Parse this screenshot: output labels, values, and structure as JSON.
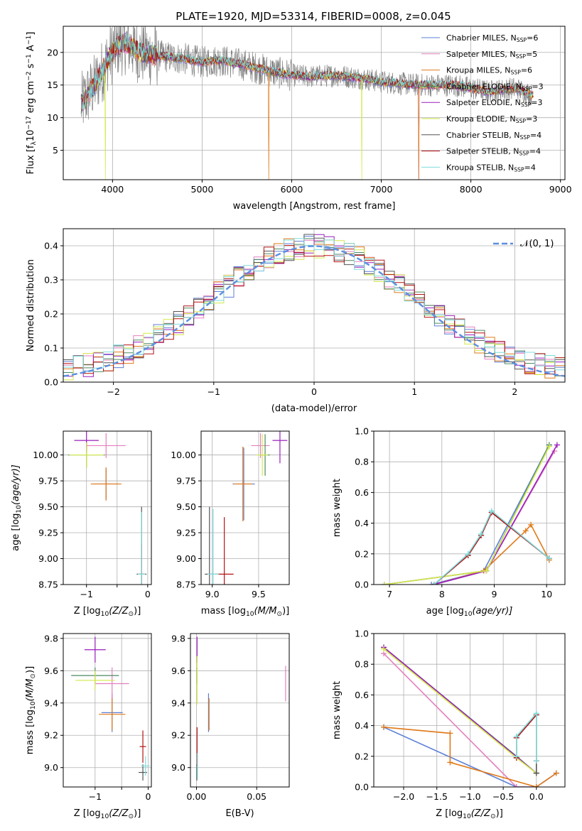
{
  "figure": {
    "title": "PLATE=1920, MJD=53314, FIBERID=0008, z=0.045"
  },
  "colors": {
    "Chabrier MILES": "#5b7fd6",
    "Salpeter MILES": "#e47fbf",
    "Kroupa MILES": "#e07a1a",
    "Chabrier ELODIE": "#4c8a63",
    "Salpeter ELODIE": "#9a1fbd",
    "Kroupa ELODIE": "#d4e84a",
    "Chabrier STELIB": "#555555",
    "Salpeter STELIB": "#b51313",
    "Kroupa STELIB": "#7fdcdc",
    "data": "#808080",
    "normal": "#5b8fe0",
    "grid": "#b0b0b0"
  },
  "legend_labels": {
    "spectrum": [
      {
        "model": "Chabrier MILES",
        "text": "Chabrier MILES, N",
        "sub": "SSP",
        "tail": "=6"
      },
      {
        "model": "Salpeter MILES",
        "text": "Salpeter MILES, N",
        "sub": "SSP",
        "tail": "=5"
      },
      {
        "model": "Kroupa MILES",
        "text": "Kroupa MILES, N",
        "sub": "SSP",
        "tail": "=6"
      },
      {
        "model": "Chabrier ELODIE",
        "text": "Chabrier ELODIE, N",
        "sub": "SSP",
        "tail": "=3"
      },
      {
        "model": "Salpeter ELODIE",
        "text": "Salpeter ELODIE, N",
        "sub": "SSP",
        "tail": "=3"
      },
      {
        "model": "Kroupa ELODIE",
        "text": "Kroupa ELODIE, N",
        "sub": "SSP",
        "tail": "=3"
      },
      {
        "model": "Chabrier STELIB",
        "text": "Chabrier STELIB, N",
        "sub": "SSP",
        "tail": "=4"
      },
      {
        "model": "Salpeter STELIB",
        "text": "Salpeter STELIB, N",
        "sub": "SSP",
        "tail": "=4"
      },
      {
        "model": "Kroupa STELIB",
        "text": "Kroupa STELIB, N",
        "sub": "SSP",
        "tail": "=4"
      }
    ],
    "residual": "𝒩(0, 1)"
  },
  "chart_data": [
    {
      "id": "spectrum",
      "type": "line",
      "xlabel": "wavelength [Angstrom, rest frame]",
      "ylabel": "Flux [f",
      "ylabel_sub": "λ",
      "ylabel_rest": "10",
      "ylabel_exp": "−17",
      "ylabel_tail": " erg cm",
      "ylabel_exp2": "−2",
      "ylabel_tail2": " s",
      "ylabel_exp3": "−1",
      "ylabel_tail3": " A",
      "ylabel_exp4": "−1",
      "ylabel_end": "]",
      "xlim": [
        3450,
        9050
      ],
      "ylim": [
        0.5,
        24
      ],
      "xticks": [
        4000,
        5000,
        6000,
        7000,
        8000,
        9000
      ],
      "yticks": [
        5,
        10,
        15,
        20
      ],
      "legend_position": "upper right",
      "data_x_range": [
        3650,
        8680
      ],
      "model_x_range": [
        3650,
        8700
      ],
      "approx_continuum": [
        [
          3650,
          12
        ],
        [
          3700,
          13
        ],
        [
          3800,
          15
        ],
        [
          3900,
          17.5
        ],
        [
          3950,
          19
        ],
        [
          4050,
          21
        ],
        [
          4150,
          21.5
        ],
        [
          4300,
          20
        ],
        [
          4500,
          19.5
        ],
        [
          4800,
          19
        ],
        [
          5000,
          18.5
        ],
        [
          5200,
          18.8
        ],
        [
          5500,
          18
        ],
        [
          5800,
          17
        ],
        [
          6000,
          16.5
        ],
        [
          6200,
          16.3
        ],
        [
          6500,
          16.5
        ],
        [
          6800,
          16
        ],
        [
          7000,
          15.5
        ],
        [
          7400,
          15
        ],
        [
          7800,
          15
        ],
        [
          8000,
          14.5
        ],
        [
          8200,
          14
        ],
        [
          8500,
          14.5
        ],
        [
          8680,
          13.5
        ]
      ]
    },
    {
      "id": "residuals",
      "type": "histogram",
      "xlabel": "(data-model)/error",
      "ylabel": "Normed distribution",
      "xlim": [
        -2.5,
        2.5
      ],
      "ylim": [
        0,
        0.45
      ],
      "xticks": [
        -2,
        -1,
        0,
        1,
        2
      ],
      "xtick_labels": [
        "−2",
        "−1",
        "0",
        "1",
        "2"
      ],
      "yticks": [
        0.0,
        0.1,
        0.2,
        0.3,
        0.4
      ],
      "ytick_labels": [
        "0.0",
        "0.1",
        "0.2",
        "0.3",
        "0.4"
      ],
      "bin_width": 0.1,
      "reference": {
        "name": "𝒩(0, 1)",
        "mean": 0,
        "sigma": 1
      },
      "legend_position": "upper right"
    },
    {
      "id": "age_vs_Z",
      "type": "errorbar",
      "xlabel": "Z [log",
      "xlabel_sub": "10",
      "xlabel_rest": "(Z/Z",
      "xlabel_sub2": "⊙",
      "xlabel_end": ")]",
      "ylabel": "age  [log",
      "ylabel_sub": "10",
      "ylabel_rest": "(age/yr)]",
      "xlim": [
        -1.38,
        0.06
      ],
      "ylim": [
        8.75,
        10.23
      ],
      "xticks": [
        -1,
        -0.5,
        0
      ],
      "xtick_labels": [
        "−1",
        "",
        "0"
      ],
      "yticks": [
        8.75,
        9.0,
        9.25,
        9.5,
        9.75,
        10.0
      ],
      "ytick_labels": [
        "8.75",
        "9.00",
        "9.25",
        "9.50",
        "9.75",
        "10.00"
      ],
      "points": [
        {
          "model": "Chabrier MILES",
          "x": -0.68,
          "y": 9.72,
          "xerr": 0.2,
          "yerr": 0.15
        },
        {
          "model": "Salpeter MILES",
          "x": -0.68,
          "y": 10.09,
          "xerr": 0.32,
          "yerr": 0.12
        },
        {
          "model": "Kroupa MILES",
          "x": -0.68,
          "y": 9.72,
          "xerr": 0.25,
          "yerr": 0.16
        },
        {
          "model": "Chabrier ELODIE",
          "x": -1.0,
          "y": 10.0,
          "xerr": 0.3,
          "yerr": 0.12
        },
        {
          "model": "Salpeter ELODIE",
          "x": -1.0,
          "y": 10.14,
          "xerr": 0.2,
          "yerr": 0.1
        },
        {
          "model": "Kroupa ELODIE",
          "x": -1.0,
          "y": 10.0,
          "xerr": 0.28,
          "yerr": 0.12
        },
        {
          "model": "Chabrier STELIB",
          "x": -0.1,
          "y": 8.85,
          "xerr": 0.08,
          "yerr": 0.65
        },
        {
          "model": "Salpeter STELIB",
          "x": -0.1,
          "y": 8.85,
          "xerr": 0.04,
          "yerr": 0.3
        },
        {
          "model": "Kroupa STELIB",
          "x": -0.1,
          "y": 8.85,
          "xerr": 0.06,
          "yerr": 0.6
        }
      ]
    },
    {
      "id": "age_vs_mass",
      "type": "errorbar",
      "xlabel": "mass [log",
      "xlabel_sub": "10",
      "xlabel_rest": "(M/M",
      "xlabel_sub2": "⊙",
      "xlabel_end": ")]",
      "ylabel": "",
      "xlim": [
        8.88,
        9.83
      ],
      "ylim": [
        8.75,
        10.23
      ],
      "xticks": [
        9.0,
        9.5
      ],
      "xtick_labels": [
        "9.0",
        "9.5"
      ],
      "yticks": [
        8.75,
        9.0,
        9.25,
        9.5,
        9.75,
        10.0
      ],
      "ytick_labels": [
        "8.75",
        "9.00",
        "9.25",
        "9.50",
        "9.75",
        "10.00"
      ],
      "points": [
        {
          "model": "Chabrier MILES",
          "x": 9.34,
          "y": 9.72,
          "xerr": 0.12,
          "yerr": 0.35
        },
        {
          "model": "Salpeter MILES",
          "x": 9.52,
          "y": 10.09,
          "xerr": 0.1,
          "yerr": 0.12
        },
        {
          "model": "Kroupa MILES",
          "x": 9.33,
          "y": 9.72,
          "xerr": 0.1,
          "yerr": 0.36
        },
        {
          "model": "Chabrier ELODIE",
          "x": 9.57,
          "y": 10.0,
          "xerr": 0.05,
          "yerr": 0.2
        },
        {
          "model": "Salpeter ELODIE",
          "x": 9.73,
          "y": 10.14,
          "xerr": 0.08,
          "yerr": 0.22
        },
        {
          "model": "Kroupa ELODIE",
          "x": 9.54,
          "y": 10.0,
          "xerr": 0.06,
          "yerr": 0.2
        },
        {
          "model": "Chabrier STELIB",
          "x": 8.97,
          "y": 8.85,
          "xerr": 0.05,
          "yerr": 0.65
        },
        {
          "model": "Salpeter STELIB",
          "x": 9.13,
          "y": 8.85,
          "xerr": 0.1,
          "yerr": 0.55
        },
        {
          "model": "Kroupa STELIB",
          "x": 9.01,
          "y": 8.85,
          "xerr": 0.06,
          "yerr": 0.63
        }
      ]
    },
    {
      "id": "mass_weight_vs_age",
      "type": "line",
      "xlabel": "age  [log",
      "xlabel_sub": "10",
      "xlabel_rest": "(age/yr)]",
      "ylabel": "mass weight",
      "xlim": [
        6.7,
        10.35
      ],
      "ylim": [
        0,
        1.0
      ],
      "xticks": [
        7,
        8,
        9,
        10
      ],
      "xtick_labels": [
        "7",
        "8",
        "9",
        "10"
      ],
      "yticks": [
        0.0,
        0.2,
        0.4,
        0.6,
        0.8,
        1.0
      ],
      "ytick_labels": [
        "0.0",
        "0.2",
        "0.4",
        "0.6",
        "0.8",
        "1.0"
      ],
      "series": [
        {
          "model": "Chabrier MILES",
          "x": [
            7.8,
            8.8,
            10.05
          ],
          "y": [
            0.0,
            0.09,
            0.91
          ]
        },
        {
          "model": "Salpeter MILES",
          "x": [
            6.9,
            8.85,
            10.15
          ],
          "y": [
            0.0,
            0.09,
            0.87
          ]
        },
        {
          "model": "Kroupa MILES",
          "x": [
            7.85,
            8.8,
            9.6,
            9.7,
            10.05
          ],
          "y": [
            0.0,
            0.09,
            0.35,
            0.39,
            0.16
          ]
        },
        {
          "model": "Chabrier ELODIE",
          "x": [
            6.9,
            8.85,
            10.05
          ],
          "y": [
            0.0,
            0.09,
            0.91
          ]
        },
        {
          "model": "Salpeter ELODIE",
          "x": [
            7.85,
            8.85,
            10.2
          ],
          "y": [
            0.0,
            0.09,
            0.91
          ]
        },
        {
          "model": "Kroupa ELODIE",
          "x": [
            6.9,
            8.85,
            10.05
          ],
          "y": [
            0.0,
            0.09,
            0.9
          ]
        },
        {
          "model": "Chabrier STELIB",
          "x": [
            7.85,
            8.5,
            8.75,
            8.95,
            10.05
          ],
          "y": [
            0.0,
            0.19,
            0.32,
            0.47,
            0.17
          ]
        },
        {
          "model": "Salpeter STELIB",
          "x": [
            7.85,
            8.5,
            8.75,
            8.95,
            10.05
          ],
          "y": [
            0.0,
            0.19,
            0.32,
            0.47,
            0.17
          ]
        },
        {
          "model": "Kroupa STELIB",
          "x": [
            7.85,
            8.5,
            8.75,
            8.95,
            10.05
          ],
          "y": [
            0.0,
            0.2,
            0.33,
            0.48,
            0.17
          ]
        }
      ]
    },
    {
      "id": "mass_vs_Z",
      "type": "errorbar",
      "xlabel": "Z [log",
      "xlabel_sub": "10",
      "xlabel_rest": "(Z/Z",
      "xlabel_sub2": "⊙",
      "xlabel_end": ")]",
      "ylabel": "mass [log",
      "ylabel_sub": "10",
      "ylabel_rest": "(M/M",
      "ylabel_sub2": "⊙",
      "ylabel_end": ")]",
      "xlim": [
        -1.6,
        0.06
      ],
      "ylim": [
        8.88,
        9.83
      ],
      "xticks": [
        -1,
        -0.5,
        0
      ],
      "xtick_labels": [
        "−1",
        "",
        "0"
      ],
      "yticks": [
        9.0,
        9.2,
        9.4,
        9.6,
        9.8
      ],
      "ytick_labels": [
        "9.0",
        "9.2",
        "9.4",
        "9.6",
        "9.8"
      ],
      "points": [
        {
          "model": "Chabrier MILES",
          "x": -0.68,
          "y": 9.34,
          "xerr": 0.2,
          "yerr": 0.12
        },
        {
          "model": "Salpeter MILES",
          "x": -0.68,
          "y": 9.52,
          "xerr": 0.32,
          "yerr": 0.1
        },
        {
          "model": "Kroupa MILES",
          "x": -0.68,
          "y": 9.33,
          "xerr": 0.25,
          "yerr": 0.1
        },
        {
          "model": "Chabrier ELODIE",
          "x": -1.0,
          "y": 9.57,
          "xerr": 0.45,
          "yerr": 0.05
        },
        {
          "model": "Salpeter ELODIE",
          "x": -1.0,
          "y": 9.73,
          "xerr": 0.2,
          "yerr": 0.08
        },
        {
          "model": "Kroupa ELODIE",
          "x": -1.0,
          "y": 9.54,
          "xerr": 0.37,
          "yerr": 0.06
        },
        {
          "model": "Chabrier STELIB",
          "x": -0.1,
          "y": 8.97,
          "xerr": 0.08,
          "yerr": 0.05
        },
        {
          "model": "Salpeter STELIB",
          "x": -0.1,
          "y": 9.13,
          "xerr": 0.06,
          "yerr": 0.1
        },
        {
          "model": "Kroupa STELIB",
          "x": -0.05,
          "y": 9.01,
          "xerr": 0.08,
          "yerr": 0.06
        }
      ]
    },
    {
      "id": "mass_vs_ebv",
      "type": "errorbar",
      "xlabel": "E(B-V)",
      "ylabel": "",
      "xlim": [
        -0.005,
        0.077
      ],
      "ylim": [
        8.88,
        9.83
      ],
      "xticks": [
        0.0,
        0.05
      ],
      "xtick_labels": [
        "0.00",
        "0.05"
      ],
      "yticks": [
        9.0,
        9.2,
        9.4,
        9.6,
        9.8
      ],
      "ytick_labels": [
        "9.0",
        "9.2",
        "9.4",
        "9.6",
        "9.8"
      ],
      "points": [
        {
          "model": "Chabrier MILES",
          "x": 0.01,
          "y": 9.34,
          "xerr": 0.0,
          "yerr": 0.12
        },
        {
          "model": "Salpeter MILES",
          "x": 0.074,
          "y": 9.52,
          "xerr": 0.0,
          "yerr": 0.11
        },
        {
          "model": "Kroupa MILES",
          "x": 0.0105,
          "y": 9.33,
          "xerr": 0.0,
          "yerr": 0.1
        },
        {
          "model": "Chabrier ELODIE",
          "x": 0.0005,
          "y": 9.57,
          "xerr": 0.0,
          "yerr": 0.05
        },
        {
          "model": "Salpeter ELODIE",
          "x": 0.0005,
          "y": 9.73,
          "xerr": 0.0,
          "yerr": 0.08
        },
        {
          "model": "Kroupa ELODIE",
          "x": 0.0005,
          "y": 9.54,
          "xerr": 0.0,
          "yerr": 0.15
        },
        {
          "model": "Chabrier STELIB",
          "x": 0.0003,
          "y": 8.97,
          "xerr": 0.0,
          "yerr": 0.05
        },
        {
          "model": "Salpeter STELIB",
          "x": 0.0005,
          "y": 9.13,
          "xerr": 0.0,
          "yerr": 0.12
        },
        {
          "model": "Kroupa STELIB",
          "x": 0.0008,
          "y": 9.01,
          "xerr": 0.0,
          "yerr": 0.08
        }
      ]
    },
    {
      "id": "mass_weight_vs_Z",
      "type": "line",
      "xlabel": "Z [log",
      "xlabel_sub": "10",
      "xlabel_rest": "(Z/Z",
      "xlabel_sub2": "⊙",
      "xlabel_end": ")]",
      "ylabel": "mass weight",
      "xlim": [
        -2.45,
        0.43
      ],
      "ylim": [
        0,
        1.0
      ],
      "xticks": [
        -2.0,
        -1.5,
        -1.0,
        -0.5,
        0.0
      ],
      "xtick_labels": [
        "−2.0",
        "−1.5",
        "−1.0",
        "−0.5",
        "0.0"
      ],
      "yticks": [
        0.0,
        0.2,
        0.4,
        0.6,
        0.8,
        1.0
      ],
      "ytick_labels": [
        "0.0",
        "0.2",
        "0.4",
        "0.6",
        "0.8",
        "1.0"
      ],
      "series": [
        {
          "model": "Chabrier MILES",
          "x": [
            -2.3,
            -0.3,
            0.0,
            0.3
          ],
          "y": [
            0.39,
            0.0,
            0.0,
            0.09
          ]
        },
        {
          "model": "Salpeter MILES",
          "x": [
            -2.3,
            -0.3,
            0.0
          ],
          "y": [
            0.87,
            0.0,
            0.0
          ]
        },
        {
          "model": "Kroupa MILES",
          "x": [
            -2.3,
            -1.3,
            -1.3,
            0.0,
            0.3
          ],
          "y": [
            0.39,
            0.35,
            0.16,
            0.0,
            0.09
          ]
        },
        {
          "model": "Chabrier ELODIE",
          "x": [
            -2.3,
            -0.3,
            0.0
          ],
          "y": [
            0.91,
            0.2,
            0.09
          ]
        },
        {
          "model": "Salpeter ELODIE",
          "x": [
            -2.3,
            0.0
          ],
          "y": [
            0.91,
            0.09
          ]
        },
        {
          "model": "Kroupa ELODIE",
          "x": [
            -2.3,
            -0.3,
            0.0
          ],
          "y": [
            0.9,
            0.19,
            0.09
          ]
        },
        {
          "model": "Chabrier STELIB",
          "x": [
            -0.3,
            -0.3,
            0.0,
            0.0
          ],
          "y": [
            0.19,
            0.32,
            0.47,
            0.09
          ]
        },
        {
          "model": "Salpeter STELIB",
          "x": [
            -0.3,
            -0.3,
            0.0,
            0.0
          ],
          "y": [
            0.19,
            0.32,
            0.47,
            0.17
          ]
        },
        {
          "model": "Kroupa STELIB",
          "x": [
            -0.3,
            -0.3,
            0.0,
            0.0
          ],
          "y": [
            0.2,
            0.33,
            0.48,
            0.17
          ]
        }
      ]
    }
  ]
}
